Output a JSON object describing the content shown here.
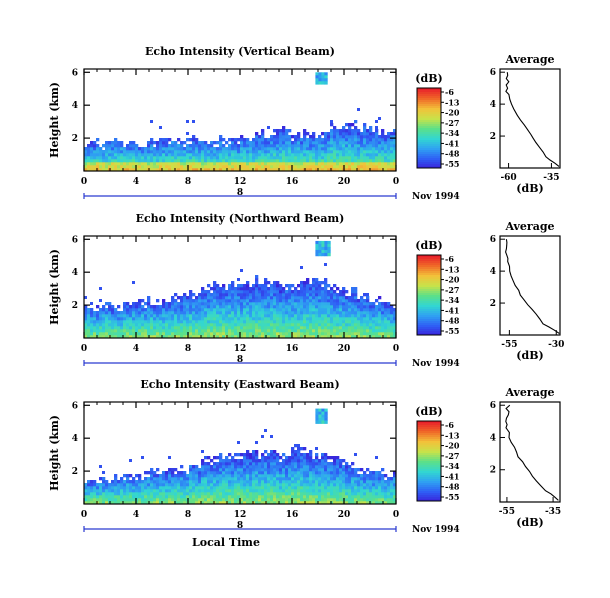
{
  "chart_data": [
    {
      "type": "heatmap",
      "title": "Echo Intensity (Vertical Beam)",
      "ylabel": "Height (km)",
      "x_ticks": [
        "0",
        "4",
        "8",
        "12",
        "16",
        "20",
        "0"
      ],
      "y_ticks": [
        "6",
        "4",
        "2"
      ],
      "xlim": [
        0,
        24
      ],
      "ylim": [
        0,
        6.2
      ],
      "date_axis": {
        "label": "8",
        "date": "Nov 1994"
      },
      "colorbar": {
        "unit": "(dB)",
        "ticks": [
          "-6",
          "-13",
          "-20",
          "-27",
          "-34",
          "-41",
          "-48",
          "-55"
        ],
        "range": [
          -55,
          -6
        ]
      },
      "echo_top": [
        1.8,
        1.9,
        2.0,
        2.0,
        1.9,
        2.0,
        2.1,
        2.0,
        2.1,
        2.2,
        2.1,
        2.2,
        2.3,
        2.4,
        2.5,
        2.6,
        2.5,
        2.4,
        2.6,
        2.9,
        3.0,
        2.8,
        2.7,
        2.6
      ],
      "high_cloud": {
        "x": [
          17.8,
          18.6
        ],
        "y": [
          5.3,
          6.0
        ]
      },
      "average_profile": {
        "title": "Average",
        "xlabel": "(dB)",
        "x_ticks": [
          "-60",
          "-35"
        ],
        "y_ticks": [
          "6",
          "4",
          "2"
        ],
        "xlim": [
          -65,
          -30
        ],
        "ylim": [
          0,
          6.2
        ],
        "x": [
          -30.5,
          -33,
          -36,
          -38,
          -40,
          -42,
          -44,
          -46,
          -47,
          -49,
          -51,
          -53,
          -55,
          -57,
          -58,
          -59,
          -60,
          -61,
          -60,
          -61,
          -60,
          -61,
          -60,
          -61
        ],
        "y": [
          0.1,
          0.3,
          0.5,
          0.7,
          1.0,
          1.3,
          1.6,
          1.9,
          2.1,
          2.4,
          2.7,
          3.0,
          3.3,
          3.7,
          4.0,
          4.3,
          4.6,
          4.8,
          5.0,
          5.2,
          5.4,
          5.6,
          5.8,
          6.0
        ]
      }
    },
    {
      "type": "heatmap",
      "title": "Echo Intensity (Northward Beam)",
      "ylabel": "Height (km)",
      "x_ticks": [
        "0",
        "4",
        "8",
        "12",
        "16",
        "20",
        "0"
      ],
      "y_ticks": [
        "6",
        "4",
        "2"
      ],
      "xlim": [
        0,
        24
      ],
      "ylim": [
        0,
        6.2
      ],
      "date_axis": {
        "label": "8",
        "date": "Nov 1994"
      },
      "colorbar": {
        "unit": "(dB)",
        "ticks": [
          "-6",
          "-13",
          "-20",
          "-27",
          "-34",
          "-41",
          "-48",
          "-55"
        ],
        "range": [
          -55,
          -6
        ]
      },
      "echo_top": [
        2.1,
        2.2,
        2.2,
        2.3,
        2.4,
        2.4,
        2.5,
        2.8,
        3.0,
        3.2,
        3.4,
        3.6,
        3.5,
        3.7,
        3.6,
        3.4,
        3.5,
        3.8,
        3.6,
        3.3,
        3.1,
        2.8,
        2.5,
        2.2
      ],
      "high_cloud": {
        "x": [
          17.8,
          18.8
        ],
        "y": [
          5.0,
          5.9
        ]
      },
      "average_profile": {
        "title": "Average",
        "xlabel": "(dB)",
        "x_ticks": [
          "-55",
          "-30"
        ],
        "y_ticks": [
          "6",
          "4",
          "2"
        ],
        "xlim": [
          -60,
          -28
        ],
        "ylim": [
          0,
          6.2
        ],
        "x": [
          -28.5,
          -31,
          -34,
          -37,
          -39,
          -41,
          -43,
          -45,
          -47,
          -49,
          -50,
          -52,
          -53,
          -54,
          -55,
          -55.5,
          -56,
          -56.5,
          -56,
          -56.5,
          -56,
          -56.5,
          -56,
          -56.5
        ],
        "y": [
          0.1,
          0.3,
          0.5,
          0.7,
          1.0,
          1.3,
          1.6,
          1.9,
          2.2,
          2.5,
          2.8,
          3.1,
          3.4,
          3.7,
          4.0,
          4.3,
          4.6,
          4.8,
          5.0,
          5.2,
          5.4,
          5.6,
          5.8,
          6.0
        ]
      }
    },
    {
      "type": "heatmap",
      "title": "Echo Intensity (Eastward Beam)",
      "ylabel": "Height (km)",
      "xlabel": "Local Time",
      "x_ticks": [
        "0",
        "4",
        "8",
        "12",
        "16",
        "20",
        "0"
      ],
      "y_ticks": [
        "6",
        "4",
        "2"
      ],
      "xlim": [
        0,
        24
      ],
      "ylim": [
        0,
        6.2
      ],
      "date_axis": {
        "label": "8",
        "date": "Nov 1994"
      },
      "colorbar": {
        "unit": "(dB)",
        "ticks": [
          "-6",
          "-13",
          "-20",
          "-27",
          "-34",
          "-41",
          "-48",
          "-55"
        ],
        "range": [
          -55,
          -6
        ]
      },
      "echo_top": [
        1.6,
        1.7,
        1.8,
        1.9,
        2.0,
        2.1,
        2.2,
        2.3,
        2.6,
        2.9,
        3.0,
        3.1,
        3.2,
        3.3,
        3.4,
        3.2,
        3.6,
        3.3,
        3.1,
        2.9,
        2.6,
        2.3,
        2.2,
        2.0
      ],
      "high_cloud": {
        "x": [
          17.8,
          18.6
        ],
        "y": [
          4.9,
          5.8
        ]
      },
      "average_profile": {
        "title": "Average",
        "xlabel": "(dB)",
        "x_ticks": [
          "-55",
          "-35"
        ],
        "y_ticks": [
          "6",
          "4",
          "2"
        ],
        "xlim": [
          -58,
          -32
        ],
        "ylim": [
          0,
          6.2
        ],
        "x": [
          -32.5,
          -34,
          -36,
          -38,
          -40,
          -42,
          -44,
          -45.5,
          -47,
          -48.5,
          -50,
          -51,
          -52,
          -53,
          -54,
          -54.5,
          -55,
          -54.5,
          -55,
          -54.5,
          -55,
          -54,
          -55,
          -54.5
        ],
        "y": [
          0.1,
          0.3,
          0.5,
          0.7,
          1.0,
          1.3,
          1.6,
          1.9,
          2.2,
          2.5,
          2.8,
          3.1,
          3.4,
          3.7,
          4.0,
          4.3,
          4.6,
          4.8,
          5.0,
          5.2,
          5.4,
          5.6,
          5.8,
          6.0
        ]
      }
    }
  ],
  "colors": {
    "scale": [
      "#3a1fd8",
      "#2f5ef5",
      "#2fa0f2",
      "#32d6d2",
      "#5be08a",
      "#c7e24a",
      "#f2c23a",
      "#f06a28",
      "#e8202a"
    ],
    "axis": "#000000"
  }
}
